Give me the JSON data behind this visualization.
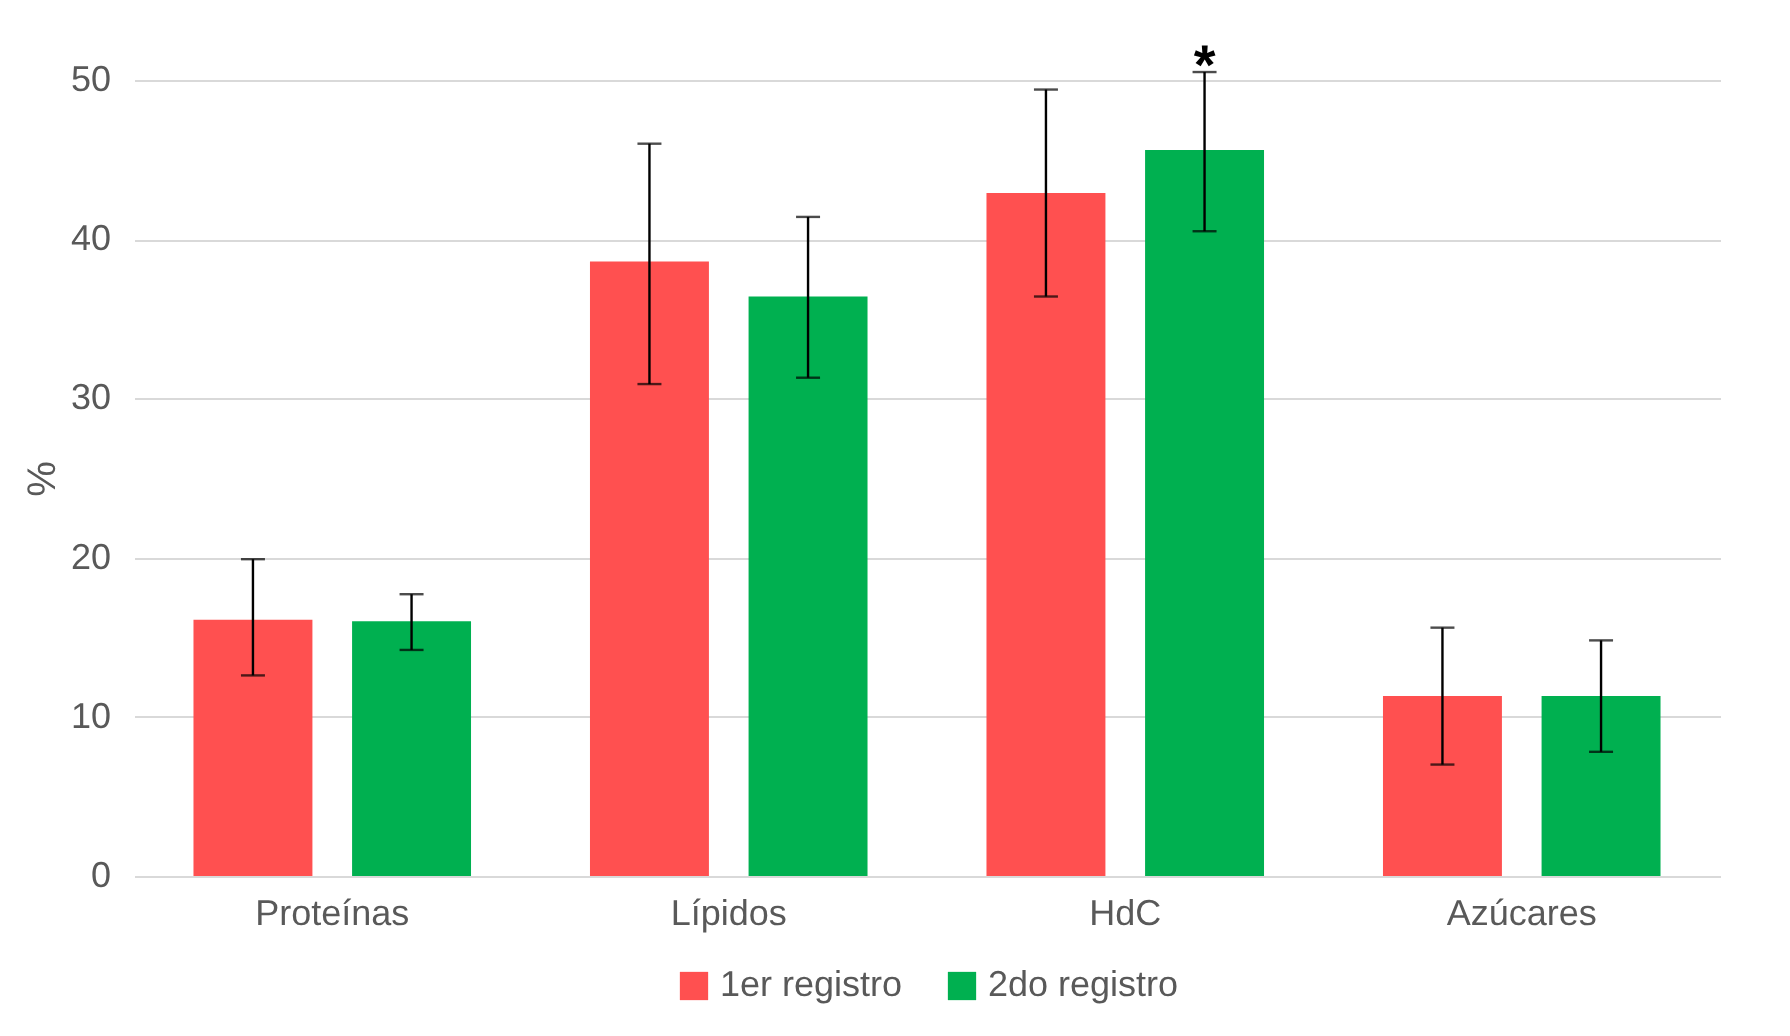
{
  "chart_data": {
    "type": "bar",
    "ylabel": "%",
    "categories": [
      "Proteínas",
      "Lípidos",
      "HdC",
      "Azúcares"
    ],
    "series": [
      {
        "name": "1er registro",
        "color": "#ff5050",
        "values": [
          16.1,
          38.6,
          42.9,
          11.3
        ],
        "errors": [
          [
            12.6,
            19.9
          ],
          [
            30.9,
            46.0
          ],
          [
            36.4,
            49.4
          ],
          [
            7.0,
            15.6
          ]
        ]
      },
      {
        "name": "2do registro",
        "color": "#00b050",
        "values": [
          16.0,
          36.4,
          45.6,
          11.3
        ],
        "errors": [
          [
            14.2,
            17.7
          ],
          [
            31.3,
            41.4
          ],
          [
            40.5,
            50.5
          ],
          [
            7.8,
            14.8
          ]
        ]
      }
    ],
    "ylim": [
      0,
      50
    ],
    "yticks": [
      0,
      10,
      20,
      30,
      40,
      50
    ],
    "grid": "y",
    "legend": "bottom",
    "annotations": [
      "*"
    ]
  }
}
